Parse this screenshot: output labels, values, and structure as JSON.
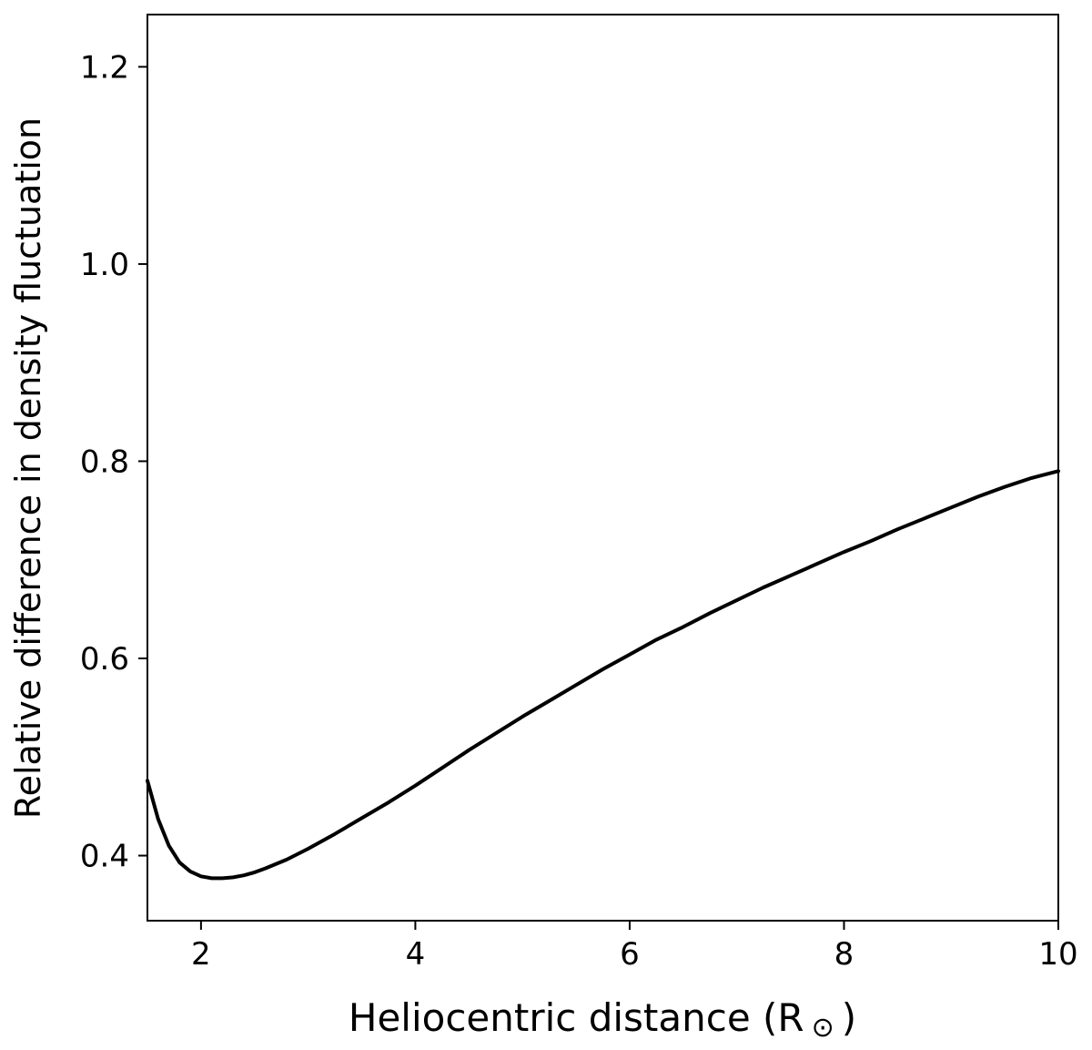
{
  "chart_data": {
    "type": "line",
    "title": "",
    "xlabel": "Heliocentric distance (R",
    "xlabel_symbol": "⊙",
    "xlabel_close": ")",
    "ylabel": "Relative difference in density fluctuation",
    "xlim": [
      1.5,
      10
    ],
    "ylim": [
      0.334,
      1.253
    ],
    "xticks": [
      2,
      4,
      6,
      8,
      10
    ],
    "yticks": [
      0.4,
      0.6,
      0.8,
      1.0,
      1.2
    ],
    "xtick_labels": [
      "2",
      "4",
      "6",
      "8",
      "10"
    ],
    "ytick_labels": [
      "0.4",
      "0.6",
      "0.8",
      "1.0",
      "1.2"
    ],
    "grid": false,
    "line_color": "#000000",
    "series": [
      {
        "x": [
          1.5,
          1.6,
          1.7,
          1.8,
          1.9,
          2.0,
          2.1,
          2.2,
          2.3,
          2.4,
          2.5,
          2.6,
          2.8,
          3.0,
          3.25,
          3.5,
          3.75,
          4.0,
          4.25,
          4.5,
          4.75,
          5.0,
          5.25,
          5.5,
          5.75,
          6.0,
          6.25,
          6.5,
          6.75,
          7.0,
          7.25,
          7.5,
          7.75,
          8.0,
          8.25,
          8.5,
          8.75,
          9.0,
          9.25,
          9.5,
          9.75,
          10.0
        ],
        "y": [
          0.476,
          0.437,
          0.41,
          0.393,
          0.384,
          0.379,
          0.377,
          0.377,
          0.378,
          0.38,
          0.383,
          0.387,
          0.396,
          0.407,
          0.422,
          0.438,
          0.454,
          0.471,
          0.489,
          0.507,
          0.524,
          0.541,
          0.557,
          0.573,
          0.589,
          0.604,
          0.619,
          0.632,
          0.646,
          0.659,
          0.672,
          0.684,
          0.696,
          0.708,
          0.719,
          0.731,
          0.742,
          0.753,
          0.764,
          0.774,
          0.783,
          0.79
        ]
      }
    ]
  }
}
